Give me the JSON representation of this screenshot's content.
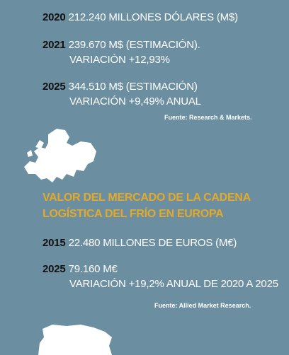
{
  "world": {
    "r2020": {
      "year": "2020",
      "text": "212.240 MILLONES DÓLARES (M$)"
    },
    "r2021": {
      "year": "2021",
      "line1": "239.670 M$ (ESTIMACIÓN).",
      "line2": "VARIACIÓN +12,93%"
    },
    "r2025": {
      "year": "2025",
      "line1": "344.510 M$ (ESTIMACIÓN)",
      "line2": "VARIACIÓN +9,49% ANUAL"
    },
    "source": "Fuente: Research & Markets."
  },
  "europe": {
    "title_line1": "VALOR DEL MERCADO DE LA CADENA",
    "title_line2": "LOGÍSTICA DEL FRÍO EN EUROPA",
    "r2015": {
      "year": "2015",
      "text": "22.480 MILLONES DE EUROS (M€)"
    },
    "r2025": {
      "year": "2025",
      "line1": "79.160 M€",
      "line2": "VARIACIÓN +19,2% ANUAL DE 2020 A 2025"
    },
    "source": "Fuente: Allied Market Research."
  },
  "icons": {
    "europe_map": "europe-map-icon",
    "spain_map": "spain-map-icon"
  },
  "colors": {
    "background": "#6b8fa0",
    "title": "#e3a92a",
    "year": "#111111",
    "text": "#ffffff"
  }
}
